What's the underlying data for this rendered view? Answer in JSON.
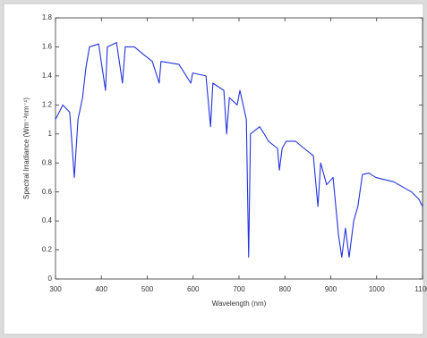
{
  "chart_data": {
    "type": "line",
    "x_label": "Wavelength (nm)",
    "y_label": "Spectral Irradiance (Wm⁻²nm⁻¹)",
    "x": [
      300,
      316,
      331,
      341,
      349,
      359,
      366,
      374,
      394,
      409,
      413,
      433,
      446,
      452,
      472,
      491,
      511,
      526,
      530,
      569,
      595,
      599,
      628,
      638,
      643,
      667,
      673,
      679,
      696,
      702,
      716,
      721,
      725,
      745,
      755,
      764,
      784,
      788,
      794,
      803,
      823,
      842,
      862,
      872,
      878,
      891,
      905,
      917,
      924,
      932,
      940,
      950,
      959,
      969,
      983,
      998,
      1037,
      1076,
      1092,
      1100
    ],
    "series": [
      {
        "color": "#2233dd",
        "values": [
          1.1,
          1.2,
          1.15,
          0.7,
          1.1,
          1.25,
          1.45,
          1.6,
          1.62,
          1.3,
          1.6,
          1.63,
          1.35,
          1.6,
          1.6,
          1.55,
          1.5,
          1.35,
          1.5,
          1.48,
          1.35,
          1.42,
          1.4,
          1.05,
          1.35,
          1.3,
          1.0,
          1.25,
          1.2,
          1.3,
          1.1,
          0.15,
          1.0,
          1.05,
          1.0,
          0.95,
          0.9,
          0.75,
          0.9,
          0.95,
          0.95,
          0.9,
          0.85,
          0.5,
          0.8,
          0.65,
          0.7,
          0.3,
          0.15,
          0.35,
          0.15,
          0.4,
          0.5,
          0.72,
          0.73,
          0.7,
          0.67,
          0.6,
          0.55,
          0.5
        ]
      }
    ],
    "xlim": [
      300,
      1100
    ],
    "xticks": [
      300,
      400,
      500,
      600,
      700,
      800,
      900,
      1000,
      1100
    ],
    "ylim": [
      0,
      1.8
    ],
    "yticks": [
      0,
      0.2,
      0.4,
      0.6,
      0.8,
      1,
      1.2,
      1.4,
      1.6,
      1.8
    ],
    "grid": false
  }
}
